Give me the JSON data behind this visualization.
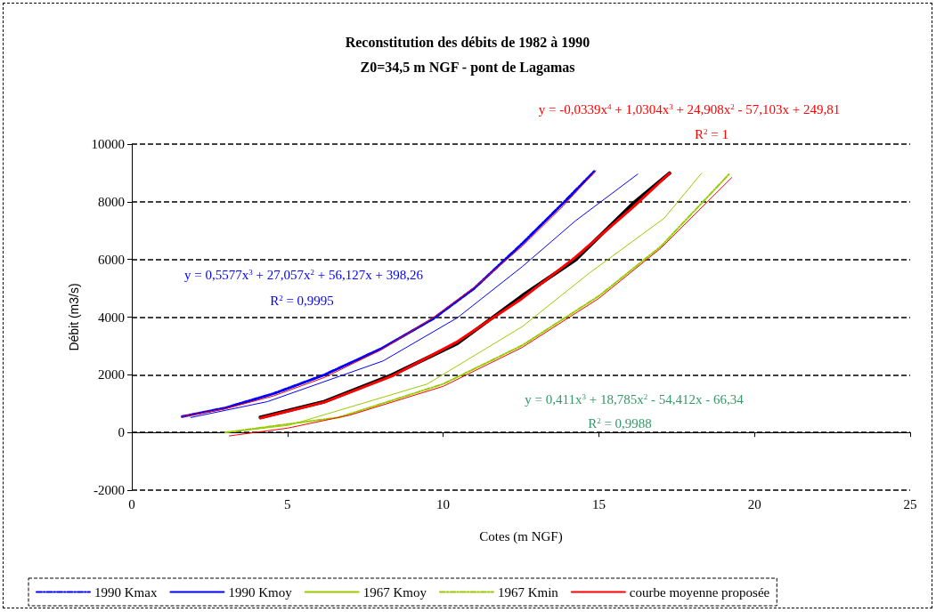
{
  "chart_data": {
    "type": "line",
    "title": "Reconstitution des débits de 1982 à 1990",
    "subtitle": "Z0=34,5 m NGF - pont de Lagamas",
    "xlabel": "Cotes (m NGF)",
    "ylabel": "Débit (m3/s)",
    "xlim": [
      0,
      25
    ],
    "xticks": [
      0,
      5,
      10,
      15,
      20,
      25
    ],
    "ylim": [
      -2000,
      10000
    ],
    "yticks": [
      -2000,
      0,
      2000,
      4000,
      6000,
      8000,
      10000
    ],
    "grid": "y",
    "legend": "bottom",
    "marker": "none",
    "annotations": [
      "y = 0,5577x$^{3}$ + 27,057x$^{2}$ + 56,127x + 398,26",
      "R$^{2}$ = 0,9995",
      "y = 0,411x$^{3}$ + 18,785x$^{2}$ - 54,412x - 66,34",
      "R$^{2}$ = 0,9988",
      "y = -0,0339x$^{4}$ + 1,0304x$^{3}$ + 24,908x$^{2}$ - 57,103x + 249,81",
      "R$^{2}$ = 1"
    ],
    "series": [
      {
        "name": "1990 Kmax",
        "color": "#0000ff",
        "line_style": "dashed",
        "x": [
          1.62,
          3,
          4.56,
          6.19,
          8,
          9.69,
          11,
          12.54,
          13.85,
          14.85
        ],
        "values": [
          550,
          850,
          1350,
          2000,
          2900,
          3950,
          5000,
          6550,
          7950,
          9050
        ]
      },
      {
        "name": "1990 Kmoy",
        "color": "#0000ff",
        "x": [
          1.9,
          4.36,
          8.07,
          10.46,
          12.54,
          14.25,
          16.25
        ],
        "values": [
          520,
          1070,
          2480,
          3980,
          5750,
          7340,
          8960
        ]
      },
      {
        "name": "1967 Kmoy",
        "color": "#99cc00",
        "x": [
          3.05,
          5.05,
          9.49,
          12.54,
          14.71,
          17.1,
          18.3
        ],
        "values": [
          0,
          250,
          1680,
          3670,
          5540,
          7430,
          8990
        ]
      },
      {
        "name": "1967 Kmin",
        "color": "#99cc00",
        "line_style": "dashed",
        "x": [
          3,
          6.64,
          10,
          12.54,
          15,
          17,
          19.21
        ],
        "values": [
          0,
          520,
          1680,
          3020,
          4730,
          6460,
          8990
        ]
      },
      {
        "color": "#000000",
        "x": [
          4.13,
          6.19,
          8.35,
          10.46,
          12.54,
          14.25,
          16.14,
          17.27
        ],
        "values": [
          520,
          1070,
          1990,
          3090,
          4740,
          5990,
          7980,
          8990
        ]
      },
      {
        "name": "courbe moyenne proposée",
        "color": "#ff0000",
        "x": [
          4.13,
          6.19,
          8.35,
          10.46,
          12.54,
          14.25,
          16.14,
          17.27
        ],
        "values": [
          500,
          1050,
          1950,
          3150,
          4650,
          6080,
          7850,
          8990
        ]
      },
      {
        "color": "#ff0000",
        "x": [
          1.62,
          3,
          4.56,
          6.19,
          8,
          9.69,
          11,
          12.54,
          13.85,
          14.9
        ],
        "values": [
          550,
          820,
          1270,
          1910,
          2860,
          3990,
          5030,
          6460,
          7850,
          9080
        ]
      },
      {
        "color": "#ff0000",
        "x": [
          3.13,
          5,
          7,
          10,
          12.54,
          15,
          17,
          19.27
        ],
        "values": [
          -120,
          150,
          600,
          1600,
          2950,
          4650,
          6400,
          8840
        ]
      }
    ]
  }
}
